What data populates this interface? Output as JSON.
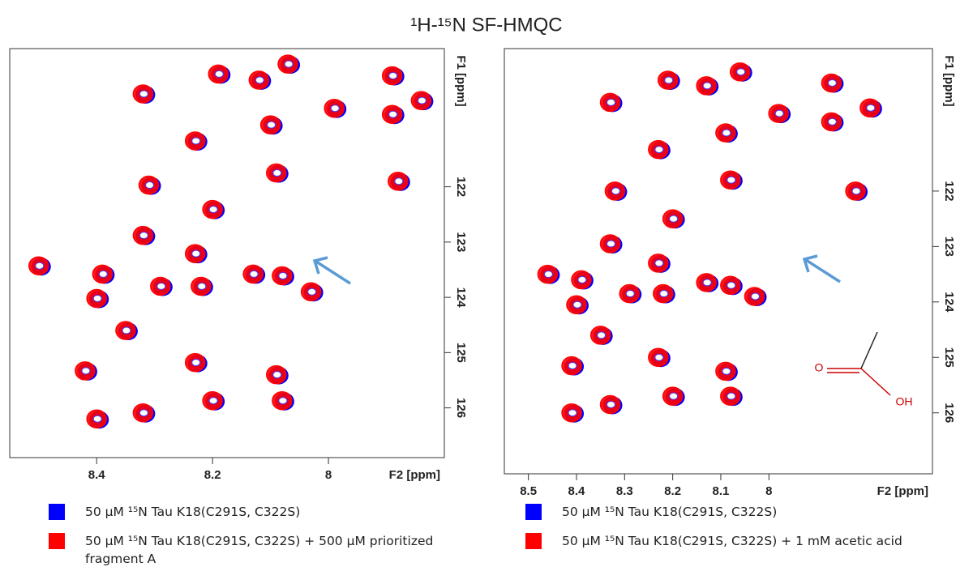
{
  "title": "¹H-¹⁵N SF-HMQC",
  "chart_data": [
    {
      "type": "scatter",
      "xlabel": "F2 [ppm]",
      "ylabel": "F1 [ppm]",
      "xlim": [
        8.55,
        7.8
      ],
      "ylim": [
        119.5,
        126.9
      ],
      "xticks": [
        8.4,
        8.2,
        8.0
      ],
      "yticks": [
        122,
        123,
        124,
        125,
        126
      ],
      "series": [
        {
          "name": "50 µM ¹⁵N Tau K18(C291S, C322S)",
          "color": "#0000ff",
          "x": [
            8.32,
            8.19,
            8.12,
            8.07,
            7.99,
            7.89,
            7.89,
            7.84,
            8.1,
            8.23,
            7.88,
            8.31,
            8.09,
            8.32,
            8.23,
            8.2,
            8.5,
            8.39,
            8.29,
            8.22,
            8.13,
            8.08,
            8.03,
            8.4,
            8.35,
            8.42,
            8.23,
            8.09,
            8.2,
            8.08,
            8.32,
            8.4
          ],
          "values": [
            120.32,
            119.96,
            120.07,
            119.78,
            120.58,
            119.99,
            120.69,
            120.44,
            120.88,
            121.17,
            121.9,
            121.97,
            121.75,
            122.88,
            123.21,
            122.41,
            123.43,
            123.58,
            123.8,
            123.8,
            123.58,
            123.61,
            123.9,
            124.02,
            124.6,
            125.33,
            125.18,
            125.4,
            125.87,
            125.87,
            126.09,
            126.2
          ]
        },
        {
          "name": "50 µM ¹⁵N Tau K18(C291S, C322S) + 500 µM prioritized fragment A",
          "color": "#ff0000",
          "x": [
            8.32,
            8.19,
            8.12,
            8.07,
            7.99,
            7.89,
            7.89,
            7.84,
            8.1,
            8.23,
            7.88,
            8.31,
            8.09,
            8.32,
            8.23,
            8.2,
            8.5,
            8.39,
            8.29,
            8.22,
            8.13,
            8.08,
            8.03,
            8.4,
            8.35,
            8.42,
            8.23,
            8.09,
            8.2,
            8.08,
            8.32,
            8.4
          ],
          "values": [
            120.32,
            119.96,
            120.07,
            119.78,
            120.58,
            119.99,
            120.69,
            120.44,
            120.88,
            121.17,
            121.9,
            121.97,
            121.75,
            122.88,
            123.21,
            122.41,
            123.43,
            123.58,
            123.8,
            123.8,
            123.58,
            123.61,
            123.9,
            124.02,
            124.6,
            125.33,
            125.18,
            125.4,
            125.87,
            125.87,
            126.09,
            126.2
          ]
        }
      ]
    },
    {
      "type": "scatter",
      "xlabel": "F2 [ppm]",
      "ylabel": "F1 [ppm]",
      "xlim": [
        8.55,
        7.66
      ],
      "ylim": [
        119.43,
        127.1
      ],
      "xticks": [
        8.5,
        8.4,
        8.3,
        8.2,
        8.1,
        8.0
      ],
      "yticks": [
        122,
        123,
        124,
        125,
        126
      ],
      "annotations": [
        "O",
        "OH"
      ],
      "series": [
        {
          "name": "50 µM ¹⁵N Tau K18(C291S, C322S)",
          "color": "#0000ff",
          "x": [
            8.33,
            8.21,
            8.13,
            8.06,
            7.98,
            7.87,
            7.87,
            7.79,
            8.09,
            8.23,
            7.82,
            8.32,
            8.08,
            8.33,
            8.23,
            8.2,
            8.46,
            8.39,
            8.29,
            8.22,
            8.13,
            8.08,
            8.03,
            8.4,
            8.35,
            8.41,
            8.23,
            8.09,
            8.2,
            8.08,
            8.33,
            8.41
          ],
          "values": [
            120.4,
            120.0,
            120.1,
            119.85,
            120.6,
            120.05,
            120.75,
            120.5,
            120.95,
            121.25,
            122.0,
            122.0,
            121.8,
            122.95,
            123.3,
            122.5,
            123.5,
            123.6,
            123.85,
            123.85,
            123.65,
            123.7,
            123.9,
            124.05,
            124.6,
            125.15,
            125.0,
            125.25,
            125.7,
            125.7,
            125.85,
            126.0
          ]
        },
        {
          "name": "50 µM ¹⁵N Tau K18(C291S, C322S) + 1 mM acetic acid",
          "color": "#ff0000",
          "x": [
            8.33,
            8.21,
            8.13,
            8.06,
            7.98,
            7.87,
            7.87,
            7.79,
            8.09,
            8.23,
            7.82,
            8.32,
            8.08,
            8.33,
            8.23,
            8.2,
            8.46,
            8.39,
            8.29,
            8.22,
            8.13,
            8.08,
            8.03,
            8.4,
            8.35,
            8.41,
            8.23,
            8.09,
            8.2,
            8.08,
            8.33,
            8.41
          ],
          "values": [
            120.4,
            120.0,
            120.1,
            119.85,
            120.6,
            120.05,
            120.75,
            120.5,
            120.95,
            121.25,
            122.0,
            122.0,
            121.8,
            122.95,
            123.3,
            122.5,
            123.5,
            123.6,
            123.85,
            123.85,
            123.65,
            123.7,
            123.9,
            124.05,
            124.6,
            125.15,
            125.0,
            125.25,
            125.7,
            125.7,
            125.85,
            126.0
          ]
        }
      ]
    }
  ]
}
